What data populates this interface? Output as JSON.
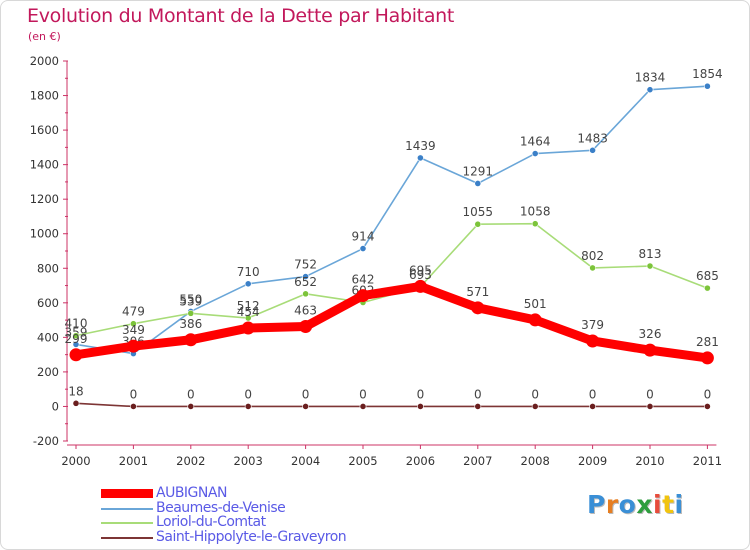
{
  "title": "Evolution du Montant de la Dette par Habitant",
  "subtitle": "(en €)",
  "logo": "Proxiti",
  "logo_colors": [
    "#3a8fd6",
    "#e67e22",
    "#3a8fd6",
    "#2e9e3e",
    "#e74c3c",
    "#f1c40f",
    "#3a8fd6"
  ],
  "chart_data": {
    "type": "line",
    "title": "Evolution du Montant de la Dette par Habitant",
    "subtitle": "(en €)",
    "xlabel": "",
    "ylabel": "",
    "x": [
      "2000",
      "2001",
      "2002",
      "2003",
      "2004",
      "2005",
      "2006",
      "2007",
      "2008",
      "2009",
      "2010",
      "2011"
    ],
    "ylim": [
      -200,
      2000
    ],
    "yticks": [
      -200,
      0,
      200,
      400,
      600,
      800,
      1000,
      1200,
      1400,
      1600,
      1800,
      2000
    ],
    "grid": false,
    "legend_position": "bottom-left",
    "series": [
      {
        "name": "Beaumes-de-Venise",
        "color": "#6aa6d8",
        "marker": "#3b80c8",
        "values": [
          359,
          306,
          550,
          710,
          752,
          914,
          1439,
          1291,
          1464,
          1483,
          1834,
          1854
        ]
      },
      {
        "name": "Loriol-du-Comtat",
        "color": "#a8dc78",
        "marker": "#7cc43a",
        "values": [
          410,
          479,
          539,
          512,
          652,
          602,
          693,
          1055,
          1058,
          802,
          813,
          685
        ]
      },
      {
        "name": "Saint-Hippolyte-le-Graveyron",
        "color": "#7d3535",
        "marker": "#6a1e1e",
        "values": [
          18,
          0,
          0,
          0,
          0,
          0,
          0,
          0,
          0,
          0,
          0,
          0
        ]
      },
      {
        "name": "AUBIGNAN",
        "color": "#ff0000",
        "marker": "#ff0000",
        "values": [
          299,
          349,
          386,
          454,
          463,
          642,
          695,
          571,
          501,
          379,
          326,
          281
        ]
      }
    ]
  }
}
